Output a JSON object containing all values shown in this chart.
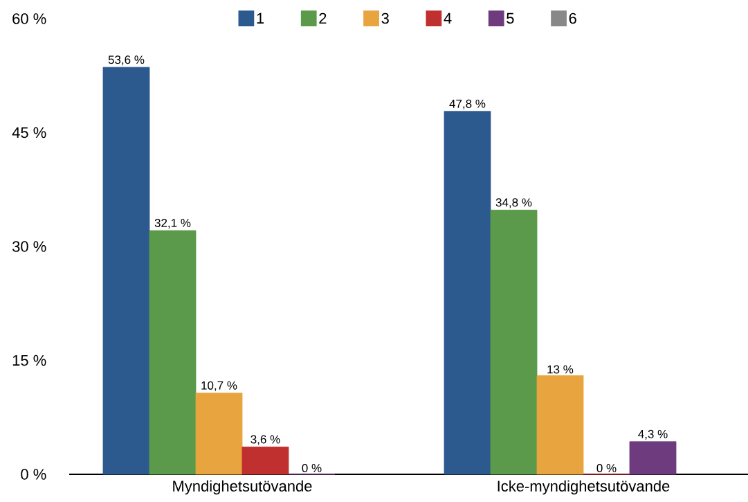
{
  "chart_data": {
    "type": "bar",
    "categories": [
      "Myndighetsutövande",
      "Icke-myndighetsutövande"
    ],
    "series": [
      {
        "name": "1",
        "color": "#2d5a8e",
        "values": [
          53.6,
          47.8
        ],
        "value_labels": [
          "53,6 %",
          "47,8 %"
        ]
      },
      {
        "name": "2",
        "color": "#5b9a4a",
        "values": [
          32.1,
          34.8
        ],
        "value_labels": [
          "32,1 %",
          "34,8 %"
        ]
      },
      {
        "name": "3",
        "color": "#e8a53f",
        "values": [
          10.7,
          13
        ],
        "value_labels": [
          "10,7 %",
          "13 %"
        ]
      },
      {
        "name": "4",
        "color": "#c0302f",
        "values": [
          3.6,
          0
        ],
        "value_labels": [
          "3,6 %",
          "0 %"
        ]
      },
      {
        "name": "5",
        "color": "#6e3b7e",
        "values": [
          0,
          4.3
        ],
        "value_labels": [
          "0 %",
          "4,3 %"
        ]
      },
      {
        "name": "6",
        "color": "#888888",
        "values": [
          null,
          null
        ],
        "value_labels": [
          null,
          null
        ]
      }
    ],
    "ylim": [
      0,
      60
    ],
    "yticks": [
      {
        "value": 0,
        "label": "0 %"
      },
      {
        "value": 15,
        "label": "15 %"
      },
      {
        "value": 30,
        "label": "30 %"
      },
      {
        "value": 45,
        "label": "45 %"
      },
      {
        "value": 60,
        "label": "60 %"
      }
    ],
    "legend": "top"
  }
}
